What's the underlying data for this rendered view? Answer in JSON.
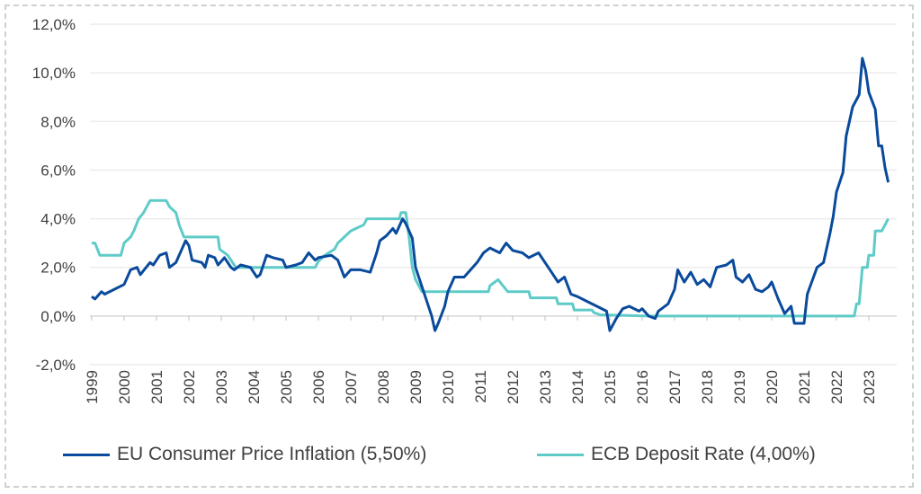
{
  "chart_data": {
    "type": "line",
    "title": "",
    "xlabel": "",
    "ylabel": "",
    "ylim": [
      -2,
      12
    ],
    "yticks": [
      "-2,0%",
      "0,0%",
      "2,0%",
      "4,0%",
      "6,0%",
      "8,0%",
      "10,0%",
      "12,0%"
    ],
    "ytick_values": [
      -2,
      0,
      2,
      4,
      6,
      8,
      10,
      12
    ],
    "xlim": [
      1999,
      2023.6
    ],
    "xticks": [
      "1999",
      "2000",
      "2001",
      "2002",
      "2003",
      "2004",
      "2005",
      "2006",
      "2007",
      "2008",
      "2009",
      "2010",
      "2011",
      "2012",
      "2013",
      "2014",
      "2015",
      "2016",
      "2017",
      "2018",
      "2019",
      "2020",
      "2021",
      "2022",
      "2023"
    ],
    "grid": true,
    "legend_position": "bottom",
    "series": [
      {
        "name": "EU Consumer Price Inflation (5,50%)",
        "color": "#0a4a9c",
        "points": [
          [
            1999.0,
            0.8
          ],
          [
            1999.1,
            0.7
          ],
          [
            1999.3,
            1.0
          ],
          [
            1999.4,
            0.9
          ],
          [
            1999.7,
            1.1
          ],
          [
            2000.0,
            1.3
          ],
          [
            2000.2,
            1.9
          ],
          [
            2000.4,
            2.0
          ],
          [
            2000.5,
            1.7
          ],
          [
            2000.8,
            2.2
          ],
          [
            2000.9,
            2.1
          ],
          [
            2001.1,
            2.5
          ],
          [
            2001.3,
            2.6
          ],
          [
            2001.4,
            2.0
          ],
          [
            2001.6,
            2.2
          ],
          [
            2001.9,
            3.1
          ],
          [
            2002.0,
            2.9
          ],
          [
            2002.1,
            2.3
          ],
          [
            2002.4,
            2.2
          ],
          [
            2002.5,
            2.0
          ],
          [
            2002.6,
            2.5
          ],
          [
            2002.8,
            2.4
          ],
          [
            2002.9,
            2.1
          ],
          [
            2003.1,
            2.4
          ],
          [
            2003.3,
            2.0
          ],
          [
            2003.4,
            1.9
          ],
          [
            2003.6,
            2.1
          ],
          [
            2003.9,
            2.0
          ],
          [
            2004.1,
            1.6
          ],
          [
            2004.2,
            1.7
          ],
          [
            2004.4,
            2.5
          ],
          [
            2004.6,
            2.4
          ],
          [
            2004.9,
            2.3
          ],
          [
            2005.0,
            2.0
          ],
          [
            2005.3,
            2.1
          ],
          [
            2005.5,
            2.2
          ],
          [
            2005.7,
            2.6
          ],
          [
            2005.9,
            2.3
          ],
          [
            2006.0,
            2.4
          ],
          [
            2006.4,
            2.5
          ],
          [
            2006.6,
            2.3
          ],
          [
            2006.8,
            1.6
          ],
          [
            2007.0,
            1.9
          ],
          [
            2007.3,
            1.9
          ],
          [
            2007.6,
            1.8
          ],
          [
            2007.8,
            2.6
          ],
          [
            2007.9,
            3.1
          ],
          [
            2008.1,
            3.3
          ],
          [
            2008.3,
            3.6
          ],
          [
            2008.4,
            3.4
          ],
          [
            2008.6,
            4.0
          ],
          [
            2008.7,
            3.8
          ],
          [
            2008.9,
            3.2
          ],
          [
            2009.0,
            2.0
          ],
          [
            2009.2,
            1.2
          ],
          [
            2009.3,
            0.8
          ],
          [
            2009.5,
            0.0
          ],
          [
            2009.6,
            -0.6
          ],
          [
            2009.7,
            -0.3
          ],
          [
            2009.9,
            0.4
          ],
          [
            2010.0,
            1.0
          ],
          [
            2010.2,
            1.6
          ],
          [
            2010.5,
            1.6
          ],
          [
            2010.7,
            1.9
          ],
          [
            2010.9,
            2.2
          ],
          [
            2011.1,
            2.6
          ],
          [
            2011.3,
            2.8
          ],
          [
            2011.6,
            2.6
          ],
          [
            2011.8,
            3.0
          ],
          [
            2012.0,
            2.7
          ],
          [
            2012.3,
            2.6
          ],
          [
            2012.5,
            2.4
          ],
          [
            2012.8,
            2.6
          ],
          [
            2013.0,
            2.2
          ],
          [
            2013.2,
            1.8
          ],
          [
            2013.4,
            1.4
          ],
          [
            2013.6,
            1.6
          ],
          [
            2013.8,
            0.9
          ],
          [
            2014.0,
            0.8
          ],
          [
            2014.3,
            0.6
          ],
          [
            2014.6,
            0.4
          ],
          [
            2014.9,
            0.2
          ],
          [
            2015.0,
            -0.6
          ],
          [
            2015.2,
            -0.1
          ],
          [
            2015.4,
            0.3
          ],
          [
            2015.6,
            0.4
          ],
          [
            2015.9,
            0.2
          ],
          [
            2016.0,
            0.3
          ],
          [
            2016.2,
            0.0
          ],
          [
            2016.4,
            -0.1
          ],
          [
            2016.5,
            0.2
          ],
          [
            2016.8,
            0.5
          ],
          [
            2017.0,
            1.1
          ],
          [
            2017.1,
            1.9
          ],
          [
            2017.3,
            1.4
          ],
          [
            2017.5,
            1.8
          ],
          [
            2017.7,
            1.3
          ],
          [
            2017.9,
            1.5
          ],
          [
            2018.1,
            1.2
          ],
          [
            2018.3,
            2.0
          ],
          [
            2018.6,
            2.1
          ],
          [
            2018.8,
            2.3
          ],
          [
            2018.9,
            1.6
          ],
          [
            2019.1,
            1.4
          ],
          [
            2019.3,
            1.7
          ],
          [
            2019.5,
            1.1
          ],
          [
            2019.7,
            1.0
          ],
          [
            2019.9,
            1.2
          ],
          [
            2020.0,
            1.4
          ],
          [
            2020.2,
            0.7
          ],
          [
            2020.4,
            0.1
          ],
          [
            2020.6,
            0.4
          ],
          [
            2020.7,
            -0.3
          ],
          [
            2021.0,
            -0.3
          ],
          [
            2021.1,
            0.9
          ],
          [
            2021.4,
            2.0
          ],
          [
            2021.6,
            2.2
          ],
          [
            2021.8,
            3.4
          ],
          [
            2021.9,
            4.1
          ],
          [
            2022.0,
            5.1
          ],
          [
            2022.2,
            5.9
          ],
          [
            2022.3,
            7.4
          ],
          [
            2022.5,
            8.6
          ],
          [
            2022.7,
            9.1
          ],
          [
            2022.8,
            10.6
          ],
          [
            2022.9,
            10.1
          ],
          [
            2023.0,
            9.2
          ],
          [
            2023.2,
            8.5
          ],
          [
            2023.3,
            7.0
          ],
          [
            2023.4,
            7.0
          ],
          [
            2023.5,
            6.1
          ],
          [
            2023.6,
            5.5
          ]
        ]
      },
      {
        "name": "ECB Deposit Rate  (4,00%)",
        "color": "#5ecbc8",
        "points": [
          [
            1999.0,
            3.0
          ],
          [
            1999.1,
            3.0
          ],
          [
            1999.25,
            2.5
          ],
          [
            1999.9,
            2.5
          ],
          [
            2000.0,
            3.0
          ],
          [
            2000.2,
            3.25
          ],
          [
            2000.3,
            3.5
          ],
          [
            2000.45,
            4.0
          ],
          [
            2000.6,
            4.25
          ],
          [
            2000.8,
            4.75
          ],
          [
            2001.3,
            4.75
          ],
          [
            2001.4,
            4.5
          ],
          [
            2001.6,
            4.25
          ],
          [
            2001.7,
            3.75
          ],
          [
            2001.85,
            3.25
          ],
          [
            2002.9,
            3.25
          ],
          [
            2002.95,
            2.75
          ],
          [
            2003.2,
            2.5
          ],
          [
            2003.45,
            2.0
          ],
          [
            2005.9,
            2.0
          ],
          [
            2006.0,
            2.25
          ],
          [
            2006.2,
            2.5
          ],
          [
            2006.5,
            2.75
          ],
          [
            2006.6,
            3.0
          ],
          [
            2006.8,
            3.25
          ],
          [
            2007.0,
            3.5
          ],
          [
            2007.4,
            3.75
          ],
          [
            2007.5,
            4.0
          ],
          [
            2008.5,
            4.0
          ],
          [
            2008.55,
            4.25
          ],
          [
            2008.7,
            4.25
          ],
          [
            2008.8,
            3.25
          ],
          [
            2008.9,
            2.0
          ],
          [
            2009.0,
            1.5
          ],
          [
            2009.2,
            1.0
          ],
          [
            2011.25,
            1.0
          ],
          [
            2011.3,
            1.25
          ],
          [
            2011.55,
            1.5
          ],
          [
            2011.85,
            1.0
          ],
          [
            2012.5,
            1.0
          ],
          [
            2012.55,
            0.75
          ],
          [
            2013.35,
            0.75
          ],
          [
            2013.4,
            0.5
          ],
          [
            2013.85,
            0.5
          ],
          [
            2013.9,
            0.25
          ],
          [
            2014.45,
            0.25
          ],
          [
            2014.5,
            0.15
          ],
          [
            2014.7,
            0.05
          ],
          [
            2016.2,
            0.0
          ],
          [
            2022.55,
            0.0
          ],
          [
            2022.62,
            0.5
          ],
          [
            2022.7,
            0.5
          ],
          [
            2022.8,
            2.0
          ],
          [
            2022.95,
            2.0
          ],
          [
            2023.0,
            2.5
          ],
          [
            2023.15,
            2.5
          ],
          [
            2023.2,
            3.5
          ],
          [
            2023.4,
            3.5
          ],
          [
            2023.6,
            4.0
          ]
        ]
      }
    ]
  },
  "legend": {
    "items": [
      "EU Consumer Price Inflation (5,50%)",
      "ECB Deposit Rate  (4,00%)"
    ]
  }
}
